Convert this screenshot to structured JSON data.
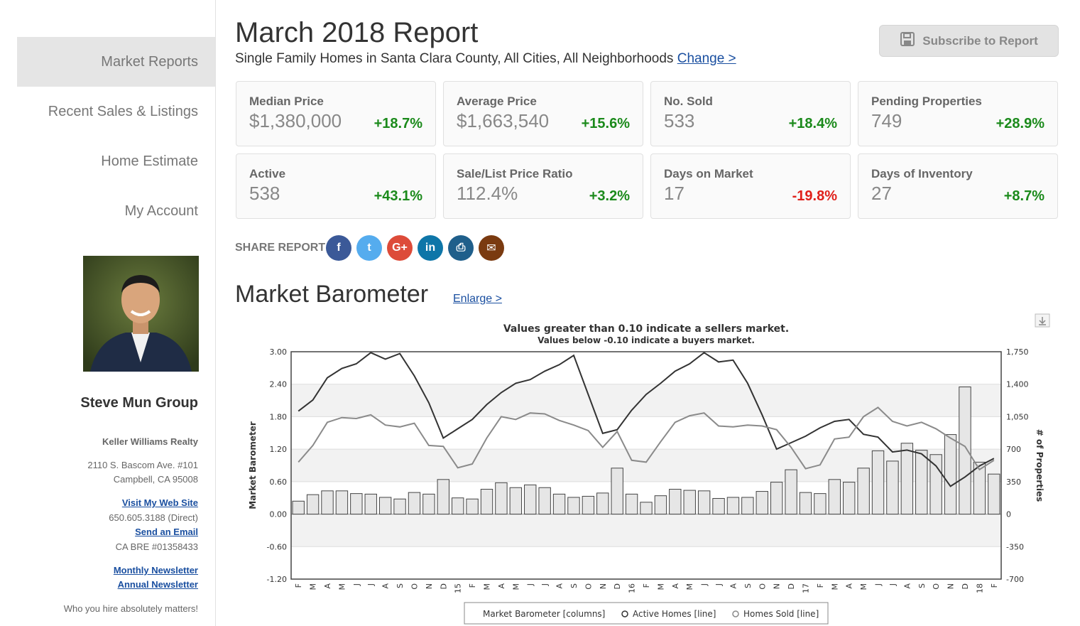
{
  "sidebar": {
    "nav": [
      "Market Reports",
      "Recent Sales & Listings",
      "Home Estimate",
      "My Account"
    ],
    "agent_name": "Steve Mun Group",
    "brokerage": "Keller Williams Realty",
    "address1": "2110 S. Bascom Ave. #101",
    "address2": "Campbell, CA 95008",
    "website_link": "Visit My Web Site",
    "phone": "650.605.3188  (Direct)",
    "email_link": "Send an Email",
    "license": "CA BRE #01358433",
    "newsletter_monthly": "Monthly Newsletter",
    "newsletter_annual": "Annual Newsletter",
    "tagline": "Who you hire absolutely matters!"
  },
  "header": {
    "title": "March 2018 Report",
    "subtitle": "Single Family Homes in Santa Clara County, All Cities, All Neighborhoods",
    "change_link": "Change >",
    "subscribe": "Subscribe to Report"
  },
  "stats": [
    {
      "label": "Median Price",
      "value": "$1,380,000",
      "change": "+18.7%",
      "trend": "up"
    },
    {
      "label": "Average Price",
      "value": "$1,663,540",
      "change": "+15.6%",
      "trend": "up"
    },
    {
      "label": "No. Sold",
      "value": "533",
      "change": "+18.4%",
      "trend": "up"
    },
    {
      "label": "Pending Properties",
      "value": "749",
      "change": "+28.9%",
      "trend": "up"
    },
    {
      "label": "Active",
      "value": "538",
      "change": "+43.1%",
      "trend": "up"
    },
    {
      "label": "Sale/List Price Ratio",
      "value": "112.4%",
      "change": "+3.2%",
      "trend": "up"
    },
    {
      "label": "Days on Market",
      "value": "17",
      "change": "-19.8%",
      "trend": "down"
    },
    {
      "label": "Days of Inventory",
      "value": "27",
      "change": "+8.7%",
      "trend": "up"
    }
  ],
  "share": {
    "label": "SHARE REPORT",
    "buttons": [
      {
        "name": "facebook",
        "glyph": "f",
        "color": "#3b5998"
      },
      {
        "name": "twitter",
        "glyph": "t",
        "color": "#55acee"
      },
      {
        "name": "google-plus",
        "glyph": "G+",
        "color": "#dd4b39"
      },
      {
        "name": "linkedin",
        "glyph": "in",
        "color": "#0e76a8"
      },
      {
        "name": "print",
        "glyph": "⎙",
        "color": "#1f5f8b"
      },
      {
        "name": "email",
        "glyph": "✉",
        "color": "#7a3a10"
      }
    ]
  },
  "barometer": {
    "title": "Market Barometer",
    "enlarge": "Enlarge >"
  },
  "chart_data": {
    "type": "bar",
    "title": "Values greater than 0.10 indicate a sellers market.",
    "subtitle": "Values below -0.10 indicate a buyers market.",
    "ylabel": "Market Barometer",
    "y2label": "# of Properties",
    "ylim": [
      -1.2,
      3.0
    ],
    "y2lim": [
      -700,
      1750
    ],
    "yticks": [
      "3.00",
      "2.40",
      "1.80",
      "1.20",
      "0.60",
      "0.00",
      "-0.60",
      "-1.20"
    ],
    "y2ticks": [
      "1,750",
      "1,400",
      "1,050",
      "700",
      "350",
      "0",
      "-350",
      "-700"
    ],
    "categories": [
      "F",
      "M",
      "A",
      "M",
      "J",
      "J",
      "A",
      "S",
      "O",
      "N",
      "D",
      "15",
      "F",
      "M",
      "A",
      "M",
      "J",
      "J",
      "A",
      "S",
      "O",
      "N",
      "D",
      "16",
      "F",
      "M",
      "A",
      "M",
      "J",
      "J",
      "A",
      "S",
      "O",
      "N",
      "D",
      "17",
      "F",
      "M",
      "A",
      "M",
      "J",
      "J",
      "A",
      "S",
      "O",
      "N",
      "D",
      "18",
      "F"
    ],
    "series": [
      {
        "name": "Market Barometer [columns]",
        "type": "column",
        "values": [
          0.24,
          0.36,
          0.43,
          0.43,
          0.38,
          0.37,
          0.31,
          0.28,
          0.4,
          0.37,
          0.64,
          0.3,
          0.28,
          0.46,
          0.58,
          0.49,
          0.54,
          0.49,
          0.37,
          0.31,
          0.33,
          0.39,
          0.85,
          0.37,
          0.22,
          0.34,
          0.46,
          0.44,
          0.43,
          0.29,
          0.31,
          0.31,
          0.42,
          0.59,
          0.82,
          0.4,
          0.38,
          0.64,
          0.59,
          0.85,
          1.17,
          0.98,
          1.31,
          1.18,
          1.1,
          1.47,
          2.35,
          0.96,
          0.74
        ]
      },
      {
        "name": "Active Homes [line]",
        "type": "line",
        "values": [
          1110,
          1230,
          1470,
          1570,
          1620,
          1740,
          1670,
          1730,
          1490,
          1200,
          820,
          920,
          1020,
          1180,
          1310,
          1410,
          1450,
          1540,
          1610,
          1710,
          1290,
          870,
          910,
          1120,
          1290,
          1410,
          1540,
          1620,
          1740,
          1640,
          1660,
          1410,
          1070,
          700,
          770,
          840,
          930,
          1000,
          1020,
          860,
          830,
          670,
          690,
          650,
          520,
          300,
          400,
          520,
          600
        ]
      },
      {
        "name": "Homes Sold [line]",
        "type": "line",
        "values": [
          560,
          740,
          990,
          1040,
          1030,
          1070,
          960,
          940,
          980,
          740,
          730,
          500,
          540,
          820,
          1050,
          1020,
          1090,
          1080,
          1010,
          960,
          900,
          720,
          890,
          580,
          560,
          780,
          990,
          1060,
          1090,
          950,
          940,
          960,
          950,
          910,
          720,
          490,
          530,
          810,
          830,
          1050,
          1150,
          1000,
          950,
          990,
          920,
          820,
          730,
          480,
          580
        ]
      }
    ],
    "legend": "bottom-center",
    "grid": true
  }
}
